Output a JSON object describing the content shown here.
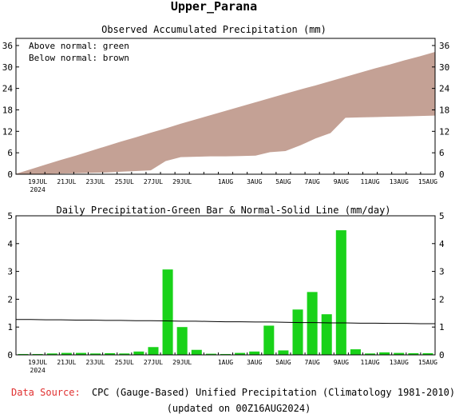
{
  "page_title": "Upper_Parana",
  "footer": {
    "source_label": "Data Source:",
    "source_text": "CPC (Gauge-Based) Unified Precipitation (Climatology 1981-2010)",
    "updated": "(updated on 00Z16AUG2024)"
  },
  "colors": {
    "accumulated_fill": "#c4a195",
    "daily_bar": "#19d219",
    "source_label": "#e03030"
  },
  "chart_data": [
    {
      "type": "area",
      "title": "Observed Accumulated Precipitation (mm)",
      "legend": [
        "Above normal: green",
        "Below normal: brown"
      ],
      "legend_placement": "top-left",
      "x_labels": [
        "19JUL",
        "21JUL",
        "23JUL",
        "25JUL",
        "27JUL",
        "29JUL",
        "1AUG",
        "3AUG",
        "5AUG",
        "7AUG",
        "9AUG",
        "11AUG",
        "13AUG",
        "15AUG"
      ],
      "x_label_days": [
        1,
        3,
        5,
        7,
        9,
        11,
        14,
        16,
        18,
        20,
        22,
        24,
        26,
        28
      ],
      "x_sublabel": "2024",
      "ylim": [
        0,
        38
      ],
      "yticks": [
        0,
        6,
        12,
        18,
        24,
        30,
        36
      ],
      "grid": false,
      "series": [
        {
          "name": "Observed",
          "values": [
            0.0,
            0.1,
            0.2,
            0.3,
            0.4,
            0.5,
            0.6,
            0.8,
            1.0,
            1.2,
            3.8,
            4.9,
            5.0,
            5.1,
            5.1,
            5.2,
            5.3,
            6.3,
            6.6,
            8.2,
            10.1,
            11.6,
            15.9,
            16.0,
            16.1,
            16.2,
            16.3,
            16.4,
            16.5
          ]
        },
        {
          "name": "Normal",
          "values": [
            0.0,
            1.3,
            2.6,
            3.9,
            5.1,
            6.4,
            7.7,
            9.0,
            10.2,
            11.5,
            12.7,
            14.0,
            15.2,
            16.4,
            17.6,
            18.8,
            20.0,
            21.2,
            22.4,
            23.6,
            24.7,
            25.9,
            27.1,
            28.3,
            29.5,
            30.6,
            31.8,
            32.9,
            34.1
          ]
        }
      ]
    },
    {
      "type": "bar",
      "title": "Daily Precipitation-Green Bar & Normal-Solid Line (mm/day)",
      "x_labels": [
        "19JUL",
        "21JUL",
        "23JUL",
        "25JUL",
        "27JUL",
        "29JUL",
        "1AUG",
        "3AUG",
        "5AUG",
        "7AUG",
        "9AUG",
        "11AUG",
        "13AUG",
        "15AUG"
      ],
      "x_label_days": [
        1,
        3,
        5,
        7,
        9,
        11,
        14,
        16,
        18,
        20,
        22,
        24,
        26,
        28
      ],
      "x_sublabel": "2024",
      "ylim": [
        0,
        5
      ],
      "yticks": [
        0,
        1,
        2,
        3,
        4,
        5
      ],
      "grid": false,
      "series": [
        {
          "name": "Daily",
          "values": [
            0.03,
            0.03,
            0.05,
            0.07,
            0.07,
            0.05,
            0.06,
            0.05,
            0.12,
            0.28,
            3.07,
            1.0,
            0.18,
            0.04,
            0.03,
            0.07,
            0.12,
            1.05,
            0.16,
            1.63,
            2.26,
            1.46,
            4.48,
            0.2,
            0.05,
            0.09,
            0.07,
            0.06,
            0.06
          ]
        },
        {
          "name": "Normal",
          "values": [
            1.27,
            1.27,
            1.26,
            1.26,
            1.25,
            1.25,
            1.24,
            1.24,
            1.23,
            1.23,
            1.22,
            1.21,
            1.21,
            1.2,
            1.19,
            1.19,
            1.18,
            1.18,
            1.17,
            1.16,
            1.16,
            1.15,
            1.15,
            1.14,
            1.14,
            1.13,
            1.13,
            1.12,
            1.12
          ]
        }
      ]
    }
  ]
}
